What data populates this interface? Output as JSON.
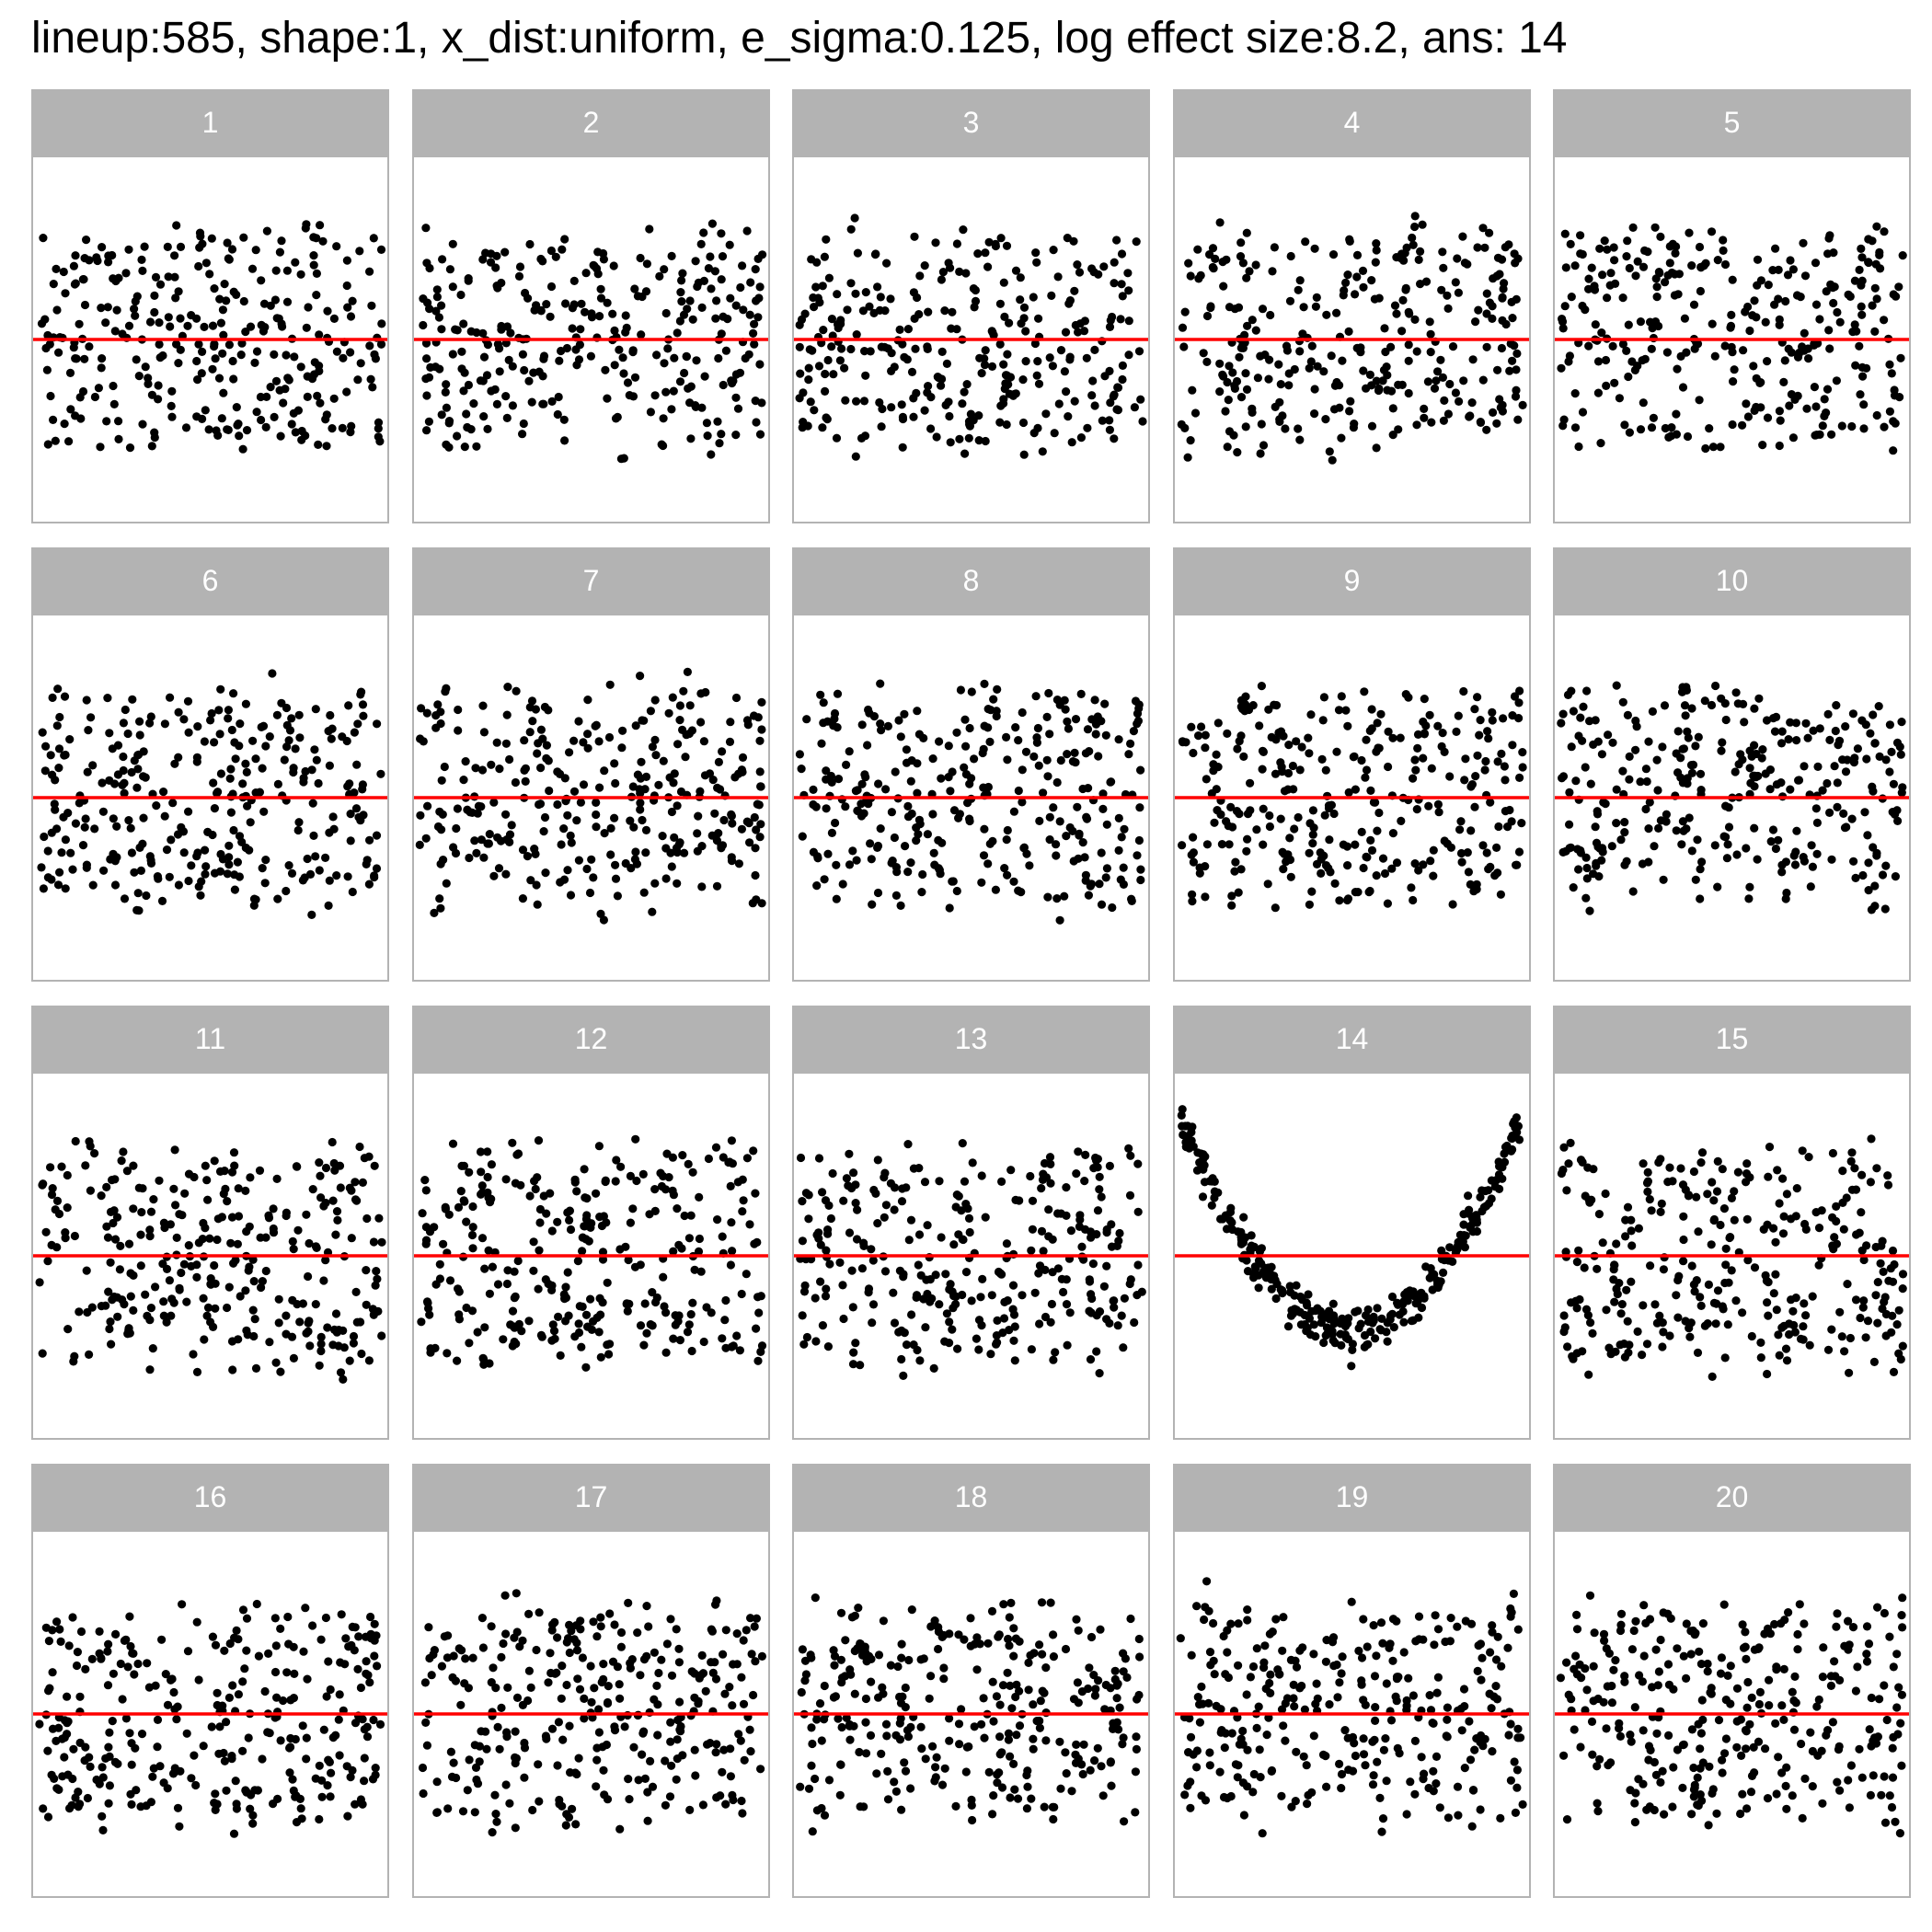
{
  "title": "lineup:585, shape:1, x_dist:uniform, e_sigma:0.125, log effect size:8.2, ans: 14",
  "colors": {
    "point": "#000000",
    "reference_line": "#ff0000",
    "strip": "#b3b3b3",
    "strip_text": "#ffffff",
    "panel_border": "#b3b3b3"
  },
  "chart_data": {
    "type": "scatter",
    "layout": "small-multiples",
    "panel_count": 20,
    "columns": 5,
    "rows": 4,
    "panel_labels": [
      "1",
      "2",
      "3",
      "4",
      "5",
      "6",
      "7",
      "8",
      "9",
      "10",
      "11",
      "12",
      "13",
      "14",
      "15",
      "16",
      "17",
      "18",
      "19",
      "20"
    ],
    "reference_line_y": 0,
    "points_per_panel": 300,
    "x_distribution": "uniform",
    "x_range": [
      -1,
      1
    ],
    "y_range": [
      -1.6,
      1.6
    ],
    "grid": false,
    "axes_visible": false,
    "answer_panel": 14,
    "answer_shape": "quadratic",
    "e_sigma": 0.125,
    "null_panels_spread_y": [
      -0.9,
      0.9
    ]
  }
}
